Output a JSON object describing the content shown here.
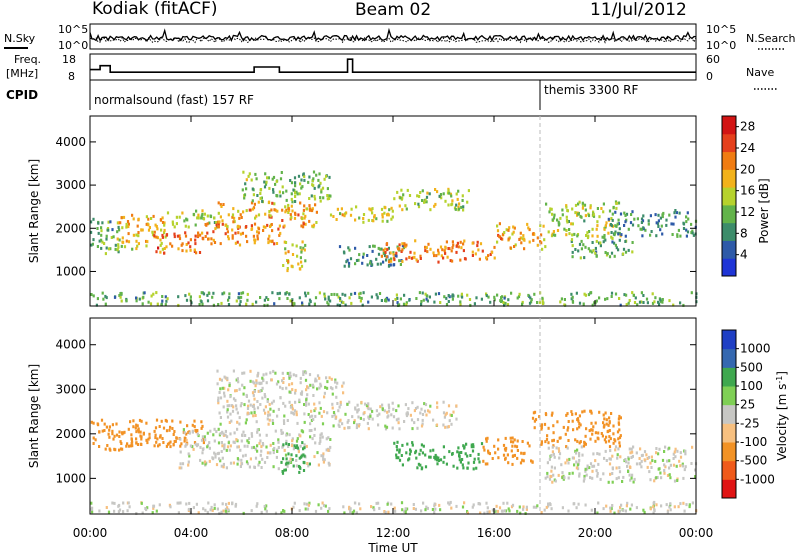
{
  "header": {
    "radar": "Kodiak (fitACF)",
    "beam": "Beam 02",
    "date": "11/Jul/2012"
  },
  "panels": {
    "nsky_label": "N.Sky",
    "nsearch_label": "N.Search",
    "freq_label_1": "Freq.",
    "freq_label_2": "[MHz]",
    "nave_label": "Nave",
    "cpid_label": "CPID",
    "noise_ticks_left": [
      "10^5",
      "10^0"
    ],
    "noise_ticks_right": [
      "10^5",
      "10^0"
    ],
    "freq_ticks": [
      "18",
      "8"
    ],
    "nave_ticks": [
      "60",
      "0"
    ],
    "cpid_segments": [
      {
        "label": "normalsound (fast) 157 RF",
        "start_hour": 0.0
      },
      {
        "label": "themis 3300 RF",
        "start_hour": 18.0
      }
    ]
  },
  "colors": {
    "power_scale": [
      "#1f35d6",
      "#2e5aa8",
      "#3c8c6a",
      "#62b34a",
      "#b6d22d",
      "#f2b21b",
      "#f07c12",
      "#e5401c",
      "#d21414"
    ],
    "velocity_scale": [
      "#e01414",
      "#f05a1a",
      "#f29225",
      "#f7c080",
      "#c7c7c4",
      "#7fcf55",
      "#3fa84f",
      "#3568b0",
      "#1f3fc4"
    ]
  },
  "chart_data": [
    {
      "type": "heatmap",
      "name": "power",
      "xlabel": "",
      "ylabel": "Slant Range [km]",
      "ylim": [
        200,
        4600
      ],
      "xlim": [
        0,
        24
      ],
      "y_ticks": [
        "1000",
        "2000",
        "3000",
        "4000"
      ],
      "x_ticks": [
        "00:00",
        "04:00",
        "08:00",
        "12:00",
        "16:00",
        "20:00",
        "00:00"
      ],
      "colorbar_label": "Power [dB]",
      "colorbar_ticks": [
        "4",
        "8",
        "12",
        "16",
        "20",
        "24",
        "28"
      ],
      "colorbar_range": [
        0,
        30
      ],
      "regions": [
        {
          "x0": 0.0,
          "x1": 1.2,
          "y0": 1400,
          "y1": 2200,
          "v": 10
        },
        {
          "x0": 1.0,
          "x1": 3.0,
          "y0": 1500,
          "y1": 2300,
          "v": 18
        },
        {
          "x0": 2.5,
          "x1": 4.5,
          "y0": 1400,
          "y1": 1900,
          "v": 24
        },
        {
          "x0": 3.0,
          "x1": 5.0,
          "y0": 2000,
          "y1": 2400,
          "v": 14
        },
        {
          "x0": 4.5,
          "x1": 7.5,
          "y0": 1600,
          "y1": 2100,
          "v": 22
        },
        {
          "x0": 5.0,
          "x1": 9.0,
          "y0": 2000,
          "y1": 2600,
          "v": 20
        },
        {
          "x0": 6.0,
          "x1": 9.5,
          "y0": 2600,
          "y1": 3300,
          "v": 12
        },
        {
          "x0": 7.5,
          "x1": 8.5,
          "y0": 1000,
          "y1": 1700,
          "v": 16
        },
        {
          "x0": 9.5,
          "x1": 12.0,
          "y0": 2100,
          "y1": 2500,
          "v": 16
        },
        {
          "x0": 12.0,
          "x1": 15.0,
          "y0": 2400,
          "y1": 2900,
          "v": 14
        },
        {
          "x0": 9.8,
          "x1": 12.5,
          "y0": 1100,
          "y1": 1600,
          "v": 8
        },
        {
          "x0": 11.5,
          "x1": 16.0,
          "y0": 1200,
          "y1": 1700,
          "v": 22
        },
        {
          "x0": 16.0,
          "x1": 18.0,
          "y0": 1500,
          "y1": 2100,
          "v": 20
        },
        {
          "x0": 18.0,
          "x1": 21.0,
          "y0": 1800,
          "y1": 2600,
          "v": 14
        },
        {
          "x0": 19.0,
          "x1": 21.5,
          "y0": 1300,
          "y1": 1800,
          "v": 10
        },
        {
          "x0": 20.5,
          "x1": 24.0,
          "y0": 1800,
          "y1": 2400,
          "v": 8
        },
        {
          "x0": 0.0,
          "x1": 24.0,
          "y0": 200,
          "y1": 500,
          "v": 10
        }
      ]
    },
    {
      "type": "heatmap",
      "name": "velocity",
      "xlabel": "Time UT",
      "ylabel": "Slant Range [km]",
      "ylim": [
        200,
        4600
      ],
      "xlim": [
        0,
        24
      ],
      "y_ticks": [
        "1000",
        "2000",
        "3000",
        "4000"
      ],
      "x_ticks": [
        "00:00",
        "04:00",
        "08:00",
        "12:00",
        "16:00",
        "20:00",
        "00:00"
      ],
      "colorbar_label": "Velocity [m s^-1]",
      "colorbar_ticks": [
        "1000",
        "500",
        "100",
        "25",
        "-25",
        "-100",
        "-500",
        "-1000"
      ],
      "regions": [
        {
          "x0": 0.0,
          "x1": 2.0,
          "y0": 1600,
          "y1": 2300,
          "v": -150
        },
        {
          "x0": 1.5,
          "x1": 4.5,
          "y0": 1700,
          "y1": 2300,
          "v": -300
        },
        {
          "x0": 3.5,
          "x1": 9.5,
          "y0": 1200,
          "y1": 2100,
          "v": 0
        },
        {
          "x0": 5.0,
          "x1": 10.0,
          "y0": 2200,
          "y1": 3400,
          "v": 0
        },
        {
          "x0": 7.5,
          "x1": 8.7,
          "y0": 1100,
          "y1": 1800,
          "v": 150
        },
        {
          "x0": 9.5,
          "x1": 14.5,
          "y0": 2100,
          "y1": 2700,
          "v": 0
        },
        {
          "x0": 12.0,
          "x1": 15.5,
          "y0": 1200,
          "y1": 1800,
          "v": 180
        },
        {
          "x0": 15.5,
          "x1": 17.5,
          "y0": 1300,
          "y1": 1900,
          "v": -200
        },
        {
          "x0": 17.5,
          "x1": 21.0,
          "y0": 1700,
          "y1": 2500,
          "v": -300
        },
        {
          "x0": 18.0,
          "x1": 24.0,
          "y0": 900,
          "y1": 1700,
          "v": 0
        },
        {
          "x0": 0.0,
          "x1": 24.0,
          "y0": 200,
          "y1": 450,
          "v": 0
        }
      ]
    },
    {
      "type": "line",
      "name": "frequency",
      "ylabel": "Freq. [MHz]",
      "ylim": [
        8,
        18
      ],
      "series": [
        {
          "x": [
            0,
            0.4,
            0.8,
            5.5,
            6.5,
            7.5,
            9.8,
            10.2,
            10.4,
            24
          ],
          "values": [
            12,
            13.5,
            11,
            11,
            13,
            11,
            11,
            16,
            11,
            11
          ]
        }
      ]
    }
  ]
}
